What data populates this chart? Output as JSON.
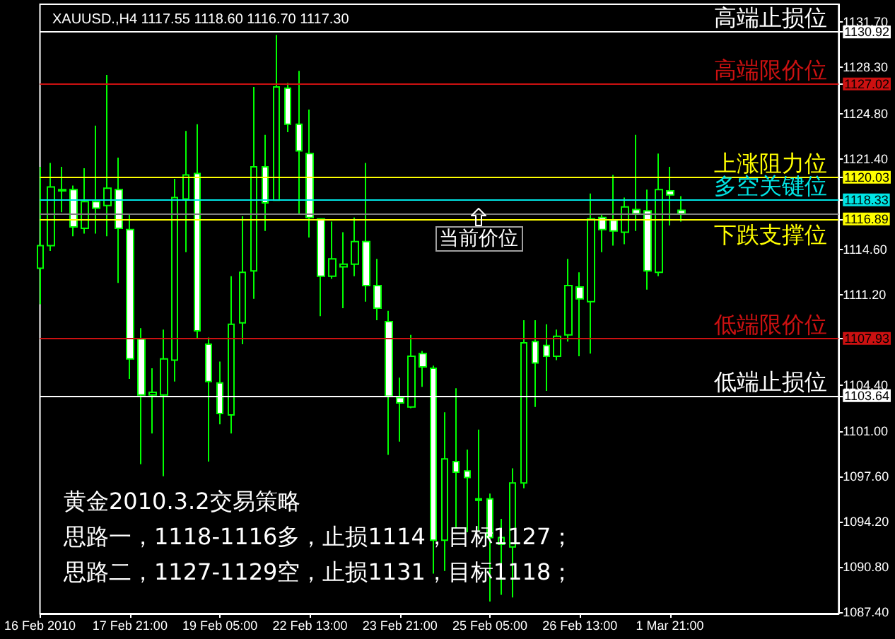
{
  "chart_data": {
    "type": "candlestick",
    "title": "XAUUSD.,H4 1117.55 1118.60 1116.70 1117.30",
    "categories": [
      "16 Feb 2010",
      null,
      null,
      null,
      null,
      null,
      null,
      null,
      "17 Feb 21:00",
      null,
      null,
      null,
      null,
      null,
      null,
      null,
      "19 Feb 05:00",
      null,
      null,
      null,
      null,
      null,
      null,
      null,
      "22 Feb 13:00",
      null,
      null,
      null,
      null,
      null,
      null,
      null,
      "23 Feb 21:00",
      null,
      null,
      null,
      null,
      null,
      null,
      null,
      "25 Feb 05:00",
      null,
      null,
      null,
      null,
      null,
      null,
      null,
      "26 Feb 13:00",
      null,
      null,
      null,
      null,
      null,
      null,
      null,
      "1 Mar 21:00",
      null,
      null,
      null,
      null,
      null,
      null,
      null,
      null,
      null,
      null,
      null,
      null,
      null,
      null,
      null
    ],
    "ohlc": [
      [
        1113.2,
        1120.8,
        1110.5,
        1114.9
      ],
      [
        1114.9,
        1121.1,
        1114.5,
        1119.3
      ],
      [
        1119.1,
        1120.8,
        1117.4,
        1119.0
      ],
      [
        1119.1,
        1119.4,
        1115.6,
        1116.3
      ],
      [
        1116.2,
        1120.7,
        1115.8,
        1118.2
      ],
      [
        1118.2,
        1123.9,
        1115.8,
        1117.7
      ],
      [
        1117.9,
        1127.7,
        1115.6,
        1119.2
      ],
      [
        1119.1,
        1121.5,
        1112.1,
        1116.2
      ],
      [
        1116.1,
        1117.3,
        1104.9,
        1106.4
      ],
      [
        1107.9,
        1108.7,
        1098.5,
        1103.7
      ],
      [
        1103.7,
        1105.7,
        1100.8,
        1103.9
      ],
      [
        1103.7,
        1108.6,
        1097.6,
        1106.4
      ],
      [
        1106.3,
        1119.9,
        1104.7,
        1118.5
      ],
      [
        1118.4,
        1123.5,
        1114.4,
        1120.2
      ],
      [
        1120.3,
        1124.0,
        1107.9,
        1108.5
      ],
      [
        1107.5,
        1108.0,
        1098.7,
        1104.7
      ],
      [
        1104.6,
        1106.2,
        1101.5,
        1102.3
      ],
      [
        1102.2,
        1112.6,
        1100.8,
        1109.0
      ],
      [
        1109.1,
        1117.1,
        1107.5,
        1112.9
      ],
      [
        1113.0,
        1126.8,
        1110.9,
        1120.8
      ],
      [
        1120.8,
        1123.2,
        1116.0,
        1118.1
      ],
      [
        1118.3,
        1130.7,
        1118.3,
        1126.8
      ],
      [
        1126.7,
        1127.1,
        1123.4,
        1124.0
      ],
      [
        1124.0,
        1128.0,
        1117.2,
        1122.0
      ],
      [
        1121.8,
        1125.1,
        1115.5,
        1117.0
      ],
      [
        1116.9,
        1116.9,
        1109.6,
        1112.6
      ],
      [
        1112.6,
        1116.7,
        1112.4,
        1113.9
      ],
      [
        1113.3,
        1115.9,
        1110.2,
        1113.5
      ],
      [
        1113.5,
        1117.0,
        1112.6,
        1115.2
      ],
      [
        1115.2,
        1121.1,
        1110.7,
        1111.9
      ],
      [
        1111.9,
        1113.9,
        1109.3,
        1110.2
      ],
      [
        1109.2,
        1110.0,
        1099.2,
        1103.6
      ],
      [
        1103.5,
        1105.0,
        1100.2,
        1103.1
      ],
      [
        1102.8,
        1108.2,
        1102.7,
        1106.6
      ],
      [
        1106.8,
        1107.0,
        1104.3,
        1105.8
      ],
      [
        1105.7,
        1105.9,
        1090.3,
        1092.8
      ],
      [
        1092.8,
        1102.4,
        1090.5,
        1098.9
      ],
      [
        1098.7,
        1104.2,
        1093.7,
        1097.9
      ],
      [
        1098.0,
        1099.6,
        1093.4,
        1097.5
      ],
      [
        1095.9,
        1101.1,
        1093.5,
        1095.8
      ],
      [
        1095.9,
        1096.3,
        1088.2,
        1093.0
      ],
      [
        1092.5,
        1094.4,
        1088.7,
        1093.0
      ],
      [
        1092.3,
        1098.2,
        1088.5,
        1097.1
      ],
      [
        1097.1,
        1109.3,
        1096.7,
        1107.6
      ],
      [
        1107.7,
        1109.3,
        1102.8,
        1106.1
      ],
      [
        1107.4,
        1109.0,
        1104.0,
        1106.6
      ],
      [
        1106.6,
        1108.6,
        1106.3,
        1108.1
      ],
      [
        1108.2,
        1113.9,
        1107.7,
        1111.9
      ],
      [
        1111.8,
        1112.9,
        1106.6,
        1110.9
      ],
      [
        1110.7,
        1118.8,
        1106.8,
        1116.9
      ],
      [
        1117.0,
        1117.2,
        1114.4,
        1116.1
      ],
      [
        1116.8,
        1120.2,
        1114.9,
        1116.0
      ],
      [
        1115.9,
        1118.5,
        1115.0,
        1117.8
      ],
      [
        1117.6,
        1123.2,
        1116.0,
        1117.3
      ],
      [
        1117.5,
        1119.1,
        1111.6,
        1113.0
      ],
      [
        1112.9,
        1121.8,
        1112.6,
        1119.1
      ],
      [
        1119.0,
        1120.8,
        1116.4,
        1118.7
      ],
      [
        1117.55,
        1118.6,
        1116.7,
        1117.3
      ],
      null,
      null,
      null,
      null,
      null,
      null,
      null,
      null,
      null,
      null,
      null,
      null,
      null,
      null
    ],
    "color": "#00ff00",
    "colors": [
      "#000000",
      "#000000",
      "#ffffff",
      "#ffffff",
      "#000000",
      "#ffffff",
      "#000000",
      "#ffffff",
      "#ffffff",
      "#ffffff",
      "#000000",
      "#000000",
      "#000000",
      "#000000",
      "#ffffff",
      "#ffffff",
      "#ffffff",
      "#000000",
      "#000000",
      "#000000",
      "#ffffff",
      "#000000",
      "#ffffff",
      "#ffffff",
      "#ffffff",
      "#ffffff",
      "#000000",
      "#000000",
      "#000000",
      "#ffffff",
      "#ffffff",
      "#ffffff",
      "#ffffff",
      "#000000",
      "#ffffff",
      "#ffffff",
      "#000000",
      "#ffffff",
      "#ffffff",
      "#ffffff",
      "#ffffff",
      "#000000",
      "#000000",
      "#000000",
      "#ffffff",
      "#ffffff",
      "#000000",
      "#000000",
      "#ffffff",
      "#000000",
      "#ffffff",
      "#ffffff",
      "#000000",
      "#ffffff",
      "#ffffff",
      "#000000",
      "#ffffff",
      "#ffffff",
      null,
      null,
      null,
      null,
      null,
      null,
      null,
      null,
      null,
      null,
      null,
      null,
      null,
      null
    ],
    "ylim": [
      1087.3,
      1133.0
    ],
    "yticks": [
      {
        "value": 1087.4,
        "label": "1087.40"
      },
      {
        "value": 1090.8,
        "label": "1090.80"
      },
      {
        "value": 1094.2,
        "label": "1094.20"
      },
      {
        "value": 1097.6,
        "label": "1097.60"
      },
      {
        "value": 1101.0,
        "label": "1101.00"
      },
      1103.64,
      {
        "value": 1104.4,
        "label": "1104.40"
      },
      1107.93,
      {
        "value": 1111.2,
        "label": "1111.20"
      },
      {
        "value": 1114.6,
        "label": "1114.60"
      },
      1116.89,
      1118.33,
      1120.03,
      {
        "value": 1121.4,
        "label": "1121.40"
      },
      {
        "value": 1124.8,
        "label": "1124.80"
      },
      1127.02,
      {
        "value": 1128.3,
        "label": "1128.30"
      },
      1130.92,
      {
        "value": 1131.7,
        "label": "1131.70"
      }
    ],
    "ref_lines": [
      {
        "axis": "y",
        "value": 1130.92,
        "label": "高端止损位",
        "color": "#ffffff"
      },
      {
        "axis": "y",
        "value": 1127.02,
        "label": "高端限价位",
        "color": "#cc1111"
      },
      {
        "axis": "y",
        "value": 1120.03,
        "label": "上涨阻力位",
        "color": "#ffff00"
      },
      {
        "axis": "y",
        "value": 1118.33,
        "label": "多空关键位",
        "color": "#00e5e5"
      },
      {
        "axis": "y",
        "value": 1116.89,
        "label": "下跌支撑位",
        "color": "#ffff00"
      },
      {
        "axis": "y",
        "value": 1107.93,
        "label": "低端限价位",
        "color": "#cc1111"
      },
      {
        "axis": "y",
        "value": 1103.64,
        "label": "低端止损位",
        "color": "#ffffff"
      },
      {
        "axis": "y",
        "value": 1117.3,
        "color": "#808080"
      }
    ],
    "annotations": [
      {
        "text": "当前价位",
        "y": 1117.3
      },
      "黄金2010.3.2交易策略",
      "思路一，1118-1116多，止损1114，目标1127；",
      "思路二，1127-1129空，止损1131，目标1118；"
    ]
  }
}
